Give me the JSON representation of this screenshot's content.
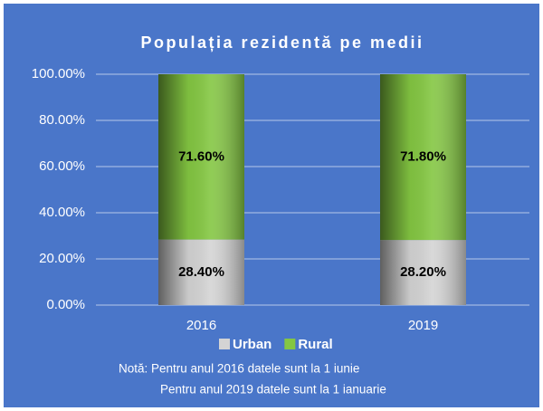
{
  "chart_data": {
    "type": "stacked_bar",
    "title": "Populația rezidentă pe medii",
    "categories": [
      "2016",
      "2019"
    ],
    "series": [
      {
        "name": "Urban",
        "color": "#d4d4d4",
        "values": [
          28.4,
          28.2
        ],
        "value_labels": [
          "28.40%",
          "28.20%"
        ]
      },
      {
        "name": "Rural",
        "color": "#84c742",
        "values": [
          71.6,
          71.8
        ],
        "value_labels": [
          "71.60%",
          "71.80%"
        ]
      }
    ],
    "ylim": [
      0,
      100
    ],
    "yticks": [
      {
        "value": 0,
        "label": "0.00%"
      },
      {
        "value": 20,
        "label": "20.00%"
      },
      {
        "value": 40,
        "label": "40.00%"
      },
      {
        "value": 60,
        "label": "60.00%"
      },
      {
        "value": 80,
        "label": "80.00%"
      },
      {
        "value": 100,
        "label": "100.00%"
      }
    ],
    "grid": true,
    "legend": "bottom",
    "notes": [
      "Notă: Pentru anul 2016 datele sunt la 1 iunie",
      "Pentru anul 2019 datele sunt la 1 ianuarie"
    ]
  }
}
